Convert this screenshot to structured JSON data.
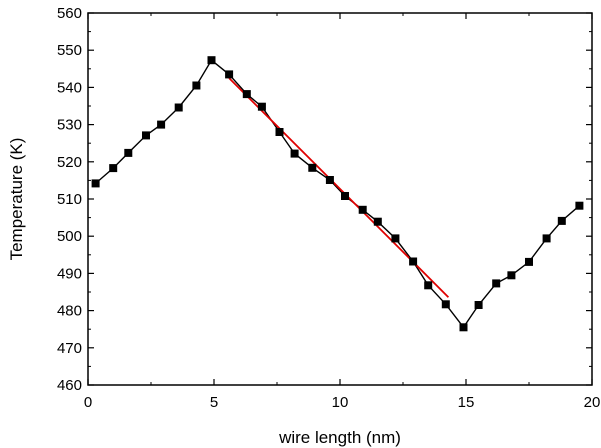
{
  "chart_data": {
    "type": "line",
    "xlabel": "wire length (nm)",
    "ylabel": "Temperature (K)",
    "xlim": [
      0,
      20
    ],
    "ylim": [
      460,
      560
    ],
    "x_ticks": [
      0,
      5,
      10,
      15,
      20
    ],
    "y_ticks": [
      460,
      470,
      480,
      490,
      500,
      510,
      520,
      530,
      540,
      550,
      560
    ],
    "grid": false,
    "legend": "none",
    "series": [
      {
        "color": "#000000",
        "marker": "square",
        "x": [
          0.3,
          1.0,
          1.6,
          2.3,
          2.9,
          3.6,
          4.3,
          4.9,
          5.6,
          6.3,
          6.9,
          7.6,
          8.2,
          8.9,
          9.6,
          10.2,
          10.9,
          11.5,
          12.2,
          12.9,
          13.5,
          14.2,
          14.9,
          15.5,
          16.2,
          16.8,
          17.5,
          18.2,
          18.8,
          19.5
        ],
        "values": [
          514.2,
          518.3,
          522.4,
          527.1,
          530.0,
          534.6,
          540.5,
          547.3,
          543.5,
          538.2,
          534.8,
          528.0,
          522.2,
          518.4,
          515.1,
          510.8,
          507.1,
          503.9,
          499.4,
          493.2,
          486.8,
          481.7,
          475.5,
          481.5,
          487.3,
          489.5,
          493.1,
          499.4,
          504.1,
          508.2
        ]
      },
      {
        "color": "#e00000",
        "marker": "none",
        "x": [
          5.6,
          14.3
        ],
        "values": [
          542.5,
          483.6
        ]
      }
    ]
  }
}
